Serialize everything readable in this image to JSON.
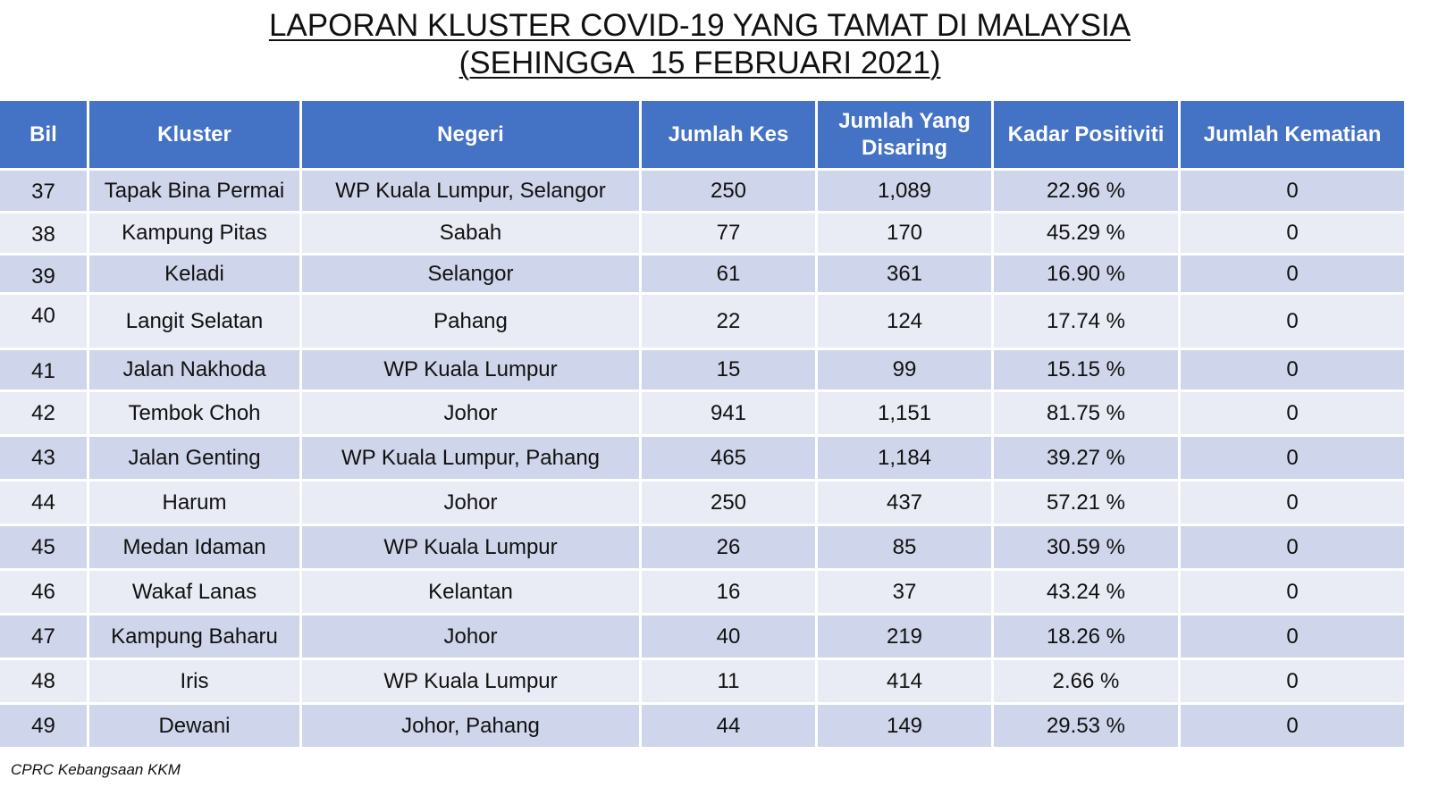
{
  "title": {
    "line1": "LAPORAN KLUSTER COVID-19 YANG TAMAT DI MALAYSIA",
    "line2": "(SEHINGGA  15 FEBRUARI 2021)"
  },
  "table": {
    "headers": [
      "Bil",
      "Kluster",
      "Negeri",
      "Jumlah Kes",
      "Jumlah Yang Disaring",
      "Kadar Positiviti",
      "Jumlah Kematian"
    ],
    "rows": [
      [
        "37",
        "Tapak Bina Permai",
        "WP Kuala Lumpur, Selangor",
        "250",
        "1,089",
        "22.96 %",
        "0"
      ],
      [
        "38",
        "Kampung Pitas",
        "Sabah",
        "77",
        "170",
        "45.29 %",
        "0"
      ],
      [
        "39",
        "Keladi",
        "Selangor",
        "61",
        "361",
        "16.90 %",
        "0"
      ],
      [
        "40",
        "Langit Selatan",
        "Pahang",
        "22",
        "124",
        "17.74 %",
        "0"
      ],
      [
        "41",
        "Jalan Nakhoda",
        "WP Kuala Lumpur",
        "15",
        "99",
        "15.15 %",
        "0"
      ],
      [
        "42",
        "Tembok Choh",
        "Johor",
        "941",
        "1,151",
        "81.75 %",
        "0"
      ],
      [
        "43",
        "Jalan Genting",
        "WP Kuala Lumpur, Pahang",
        "465",
        "1,184",
        "39.27 %",
        "0"
      ],
      [
        "44",
        "Harum",
        "Johor",
        "250",
        "437",
        "57.21 %",
        "0"
      ],
      [
        "45",
        "Medan Idaman",
        "WP Kuala Lumpur",
        "26",
        "85",
        "30.59 %",
        "0"
      ],
      [
        "46",
        "Wakaf Lanas",
        "Kelantan",
        "16",
        "37",
        "43.24 %",
        "0"
      ],
      [
        "47",
        "Kampung Baharu",
        "Johor",
        "40",
        "219",
        "18.26 %",
        "0"
      ],
      [
        "48",
        "Iris",
        "WP Kuala Lumpur",
        "11",
        "414",
        "2.66 %",
        "0"
      ],
      [
        "49",
        "Dewani",
        "Johor, Pahang",
        "44",
        "149",
        "29.53 %",
        "0"
      ]
    ]
  },
  "footer": "CPRC Kebangsaan KKM",
  "colors": {
    "header_bg": "#4472c4",
    "row_odd": "#cfd5ea",
    "row_even": "#e9ebf5"
  }
}
